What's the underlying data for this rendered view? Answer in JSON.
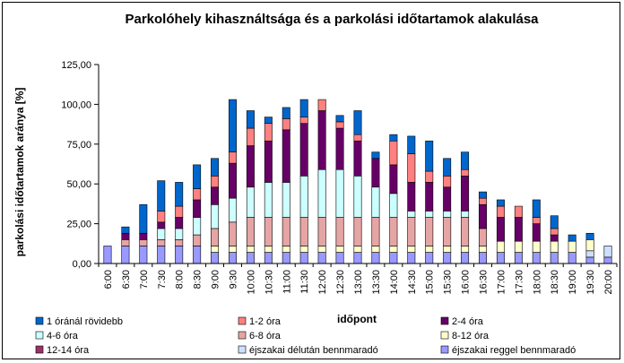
{
  "chart_data": {
    "type": "bar",
    "stacked": true,
    "title": "Parkolóhely kihasználtsága és a parkolási időtartamok alakulása",
    "xlabel": "időpont",
    "ylabel": "parkolási időtartamok aránya [%]",
    "ylim": [
      0,
      125
    ],
    "yticks": [
      "0,00",
      "25,00",
      "50,00",
      "75,00",
      "100,00",
      "125,00"
    ],
    "grid": false,
    "legend_position": "bottom",
    "categories": [
      "6:00",
      "6:30",
      "7:00",
      "7:30",
      "8:00",
      "8:30",
      "9:00",
      "9:30",
      "10:00",
      "10:30",
      "11:00",
      "11:30",
      "12:00",
      "12:30",
      "13:00",
      "13:30",
      "14:00",
      "14:30",
      "15:00",
      "15:30",
      "16:00",
      "16:30",
      "17:00",
      "17:30",
      "18:00",
      "18:30",
      "19:00",
      "19:30",
      "20:00"
    ],
    "series": [
      {
        "name": "éjszakai reggel bennmaradó",
        "color": "#9999ff",
        "values": [
          11,
          11,
          11,
          11,
          11,
          11,
          7,
          7,
          7,
          7,
          7,
          7,
          7,
          7,
          7,
          7,
          7,
          7,
          7,
          7,
          7,
          7,
          7,
          7,
          7,
          7,
          7,
          4,
          4
        ]
      },
      {
        "name": "éjszakai délután bennmaradó",
        "color": "#cce0ff",
        "values": [
          0,
          0,
          0,
          0,
          0,
          0,
          0,
          0,
          0,
          0,
          0,
          0,
          0,
          0,
          0,
          0,
          0,
          0,
          0,
          0,
          0,
          0,
          0,
          0,
          0,
          0,
          0,
          4,
          7
        ]
      },
      {
        "name": "8-12 óra",
        "color": "#ffffcc",
        "values": [
          0,
          0,
          0,
          0,
          0,
          0,
          4,
          4,
          4,
          4,
          4,
          4,
          4,
          4,
          4,
          4,
          4,
          4,
          4,
          4,
          4,
          4,
          7,
          7,
          7,
          7,
          7,
          7,
          0
        ]
      },
      {
        "name": "6-8 óra",
        "color": "#e6a5a5",
        "values": [
          0,
          4,
          4,
          4,
          4,
          7,
          11,
          15,
          18,
          18,
          18,
          18,
          18,
          18,
          18,
          18,
          18,
          18,
          18,
          18,
          18,
          11,
          0,
          0,
          0,
          0,
          0,
          0,
          0
        ]
      },
      {
        "name": "4-6 óra",
        "color": "#ccffff",
        "values": [
          0,
          0,
          0,
          7,
          7,
          11,
          15,
          15,
          19,
          22,
          22,
          26,
          30,
          30,
          26,
          19,
          15,
          4,
          4,
          4,
          4,
          0,
          0,
          0,
          0,
          0,
          0,
          0,
          0
        ]
      },
      {
        "name": "2-4 óra",
        "color": "#660066",
        "values": [
          0,
          4,
          4,
          4,
          7,
          11,
          11,
          22,
          26,
          26,
          33,
          33,
          37,
          26,
          22,
          18,
          18,
          18,
          18,
          15,
          22,
          15,
          15,
          15,
          11,
          4,
          0,
          0,
          0
        ]
      },
      {
        "name": "12-14 óra",
        "color": "#993366",
        "values": [
          0,
          0,
          0,
          0,
          0,
          0,
          0,
          0,
          0,
          0,
          0,
          0,
          0,
          0,
          0,
          0,
          0,
          0,
          0,
          0,
          0,
          0,
          0,
          0,
          0,
          0,
          0,
          0,
          0
        ]
      },
      {
        "name": "1-2 óra",
        "color": "#ff8080",
        "values": [
          0,
          0,
          0,
          7,
          7,
          7,
          7,
          7,
          11,
          11,
          7,
          4,
          7,
          4,
          4,
          0,
          15,
          18,
          7,
          7,
          4,
          4,
          7,
          7,
          4,
          4,
          0,
          0,
          0
        ]
      },
      {
        "name": "1 óránál rövidebb",
        "color": "#0066cc",
        "values": [
          0,
          4,
          18,
          19,
          15,
          15,
          11,
          33,
          11,
          4,
          7,
          11,
          0,
          4,
          15,
          4,
          4,
          11,
          19,
          11,
          11,
          4,
          4,
          0,
          11,
          8,
          4,
          4,
          0
        ]
      }
    ],
    "legend_order": [
      "1 óránál rövidebb",
      "1-2 óra",
      "2-4 óra",
      "4-6 óra",
      "6-8 óra",
      "8-12 óra",
      "12-14 óra",
      "éjszakai délután bennmaradó",
      "éjszakai reggel bennmaradó"
    ]
  }
}
